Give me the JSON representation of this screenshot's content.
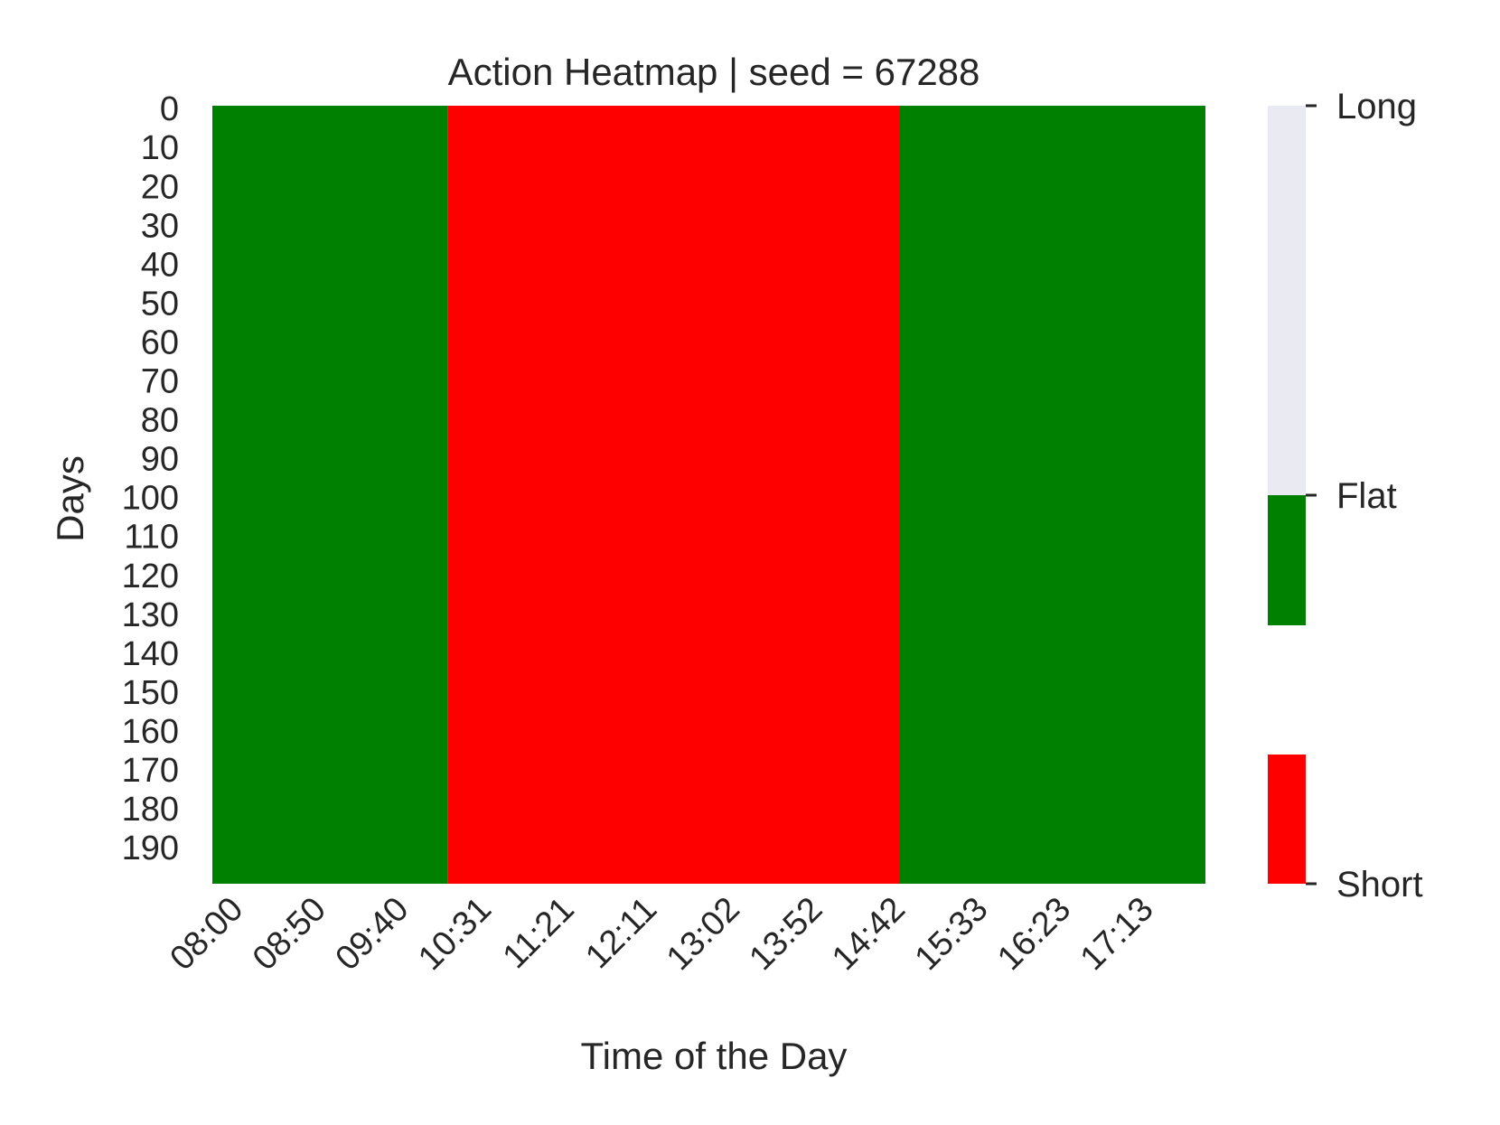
{
  "chart_data": {
    "type": "heatmap",
    "title": "Action Heatmap | seed = 67288",
    "xlabel": "Time of the Day",
    "ylabel": "Days",
    "x_tick_labels": [
      "08:00",
      "08:50",
      "09:40",
      "10:31",
      "11:21",
      "12:11",
      "13:02",
      "13:52",
      "14:42",
      "15:33",
      "16:23",
      "17:13"
    ],
    "y_tick_labels": [
      "0",
      "10",
      "20",
      "30",
      "40",
      "50",
      "60",
      "70",
      "80",
      "90",
      "100",
      "110",
      "120",
      "130",
      "140",
      "150",
      "160",
      "170",
      "180",
      "190"
    ],
    "days": [
      0,
      199
    ],
    "time_range": [
      "08:00",
      "17:50"
    ],
    "regions": [
      {
        "action": "Flat",
        "from": "08:00",
        "to": "10:20"
      },
      {
        "action": "Short",
        "from": "10:20",
        "to": "14:48"
      },
      {
        "action": "Flat",
        "from": "14:48",
        "to": "17:50"
      }
    ],
    "colorbar": {
      "ticks": [
        "Long",
        "Flat",
        "Short"
      ],
      "colors": {
        "Short": "#ff0000",
        "Flat": "#008000",
        "Long": "#eaeaf2"
      }
    }
  }
}
